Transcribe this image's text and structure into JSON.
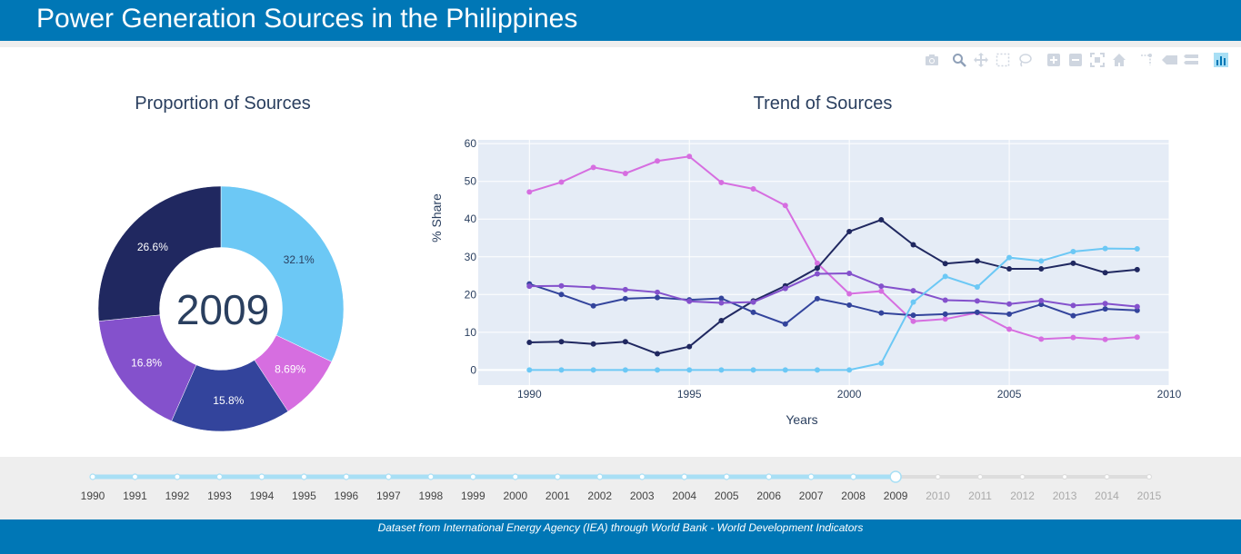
{
  "header": {
    "title": "Power Generation Sources in the Philippines"
  },
  "footer": {
    "note": "Dataset from International Energy Agency (IEA) through World Bank - World Development Indicators"
  },
  "modebar": {
    "icons": [
      "camera-icon",
      "zoom-icon",
      "pan-icon",
      "box-select-icon",
      "lasso-select-icon",
      "zoom-in-icon",
      "zoom-out-icon",
      "autoscale-icon",
      "reset-axes-icon",
      "spike-lines-icon",
      "hover-closest-icon",
      "hover-compare-icon",
      "plotly-logo-icon"
    ]
  },
  "slider": {
    "years": [
      "1990",
      "1991",
      "1992",
      "1993",
      "1994",
      "1995",
      "1996",
      "1997",
      "1998",
      "1999",
      "2000",
      "2001",
      "2002",
      "2003",
      "2004",
      "2005",
      "2006",
      "2007",
      "2008",
      "2009",
      "2010",
      "2011",
      "2012",
      "2013",
      "2014",
      "2015"
    ],
    "selected": "2009",
    "active_color": "#a8dff5",
    "inactive_color": "#dddddd"
  },
  "chart_data": [
    {
      "type": "pie",
      "title": "Proportion of Sources",
      "hole_text": "2009",
      "hole": 0.5,
      "slices": [
        {
          "label": "32.1%",
          "value": 32.1,
          "color": "#6cc8f5"
        },
        {
          "label": "8.69%",
          "value": 8.69,
          "color": "#d66ee0"
        },
        {
          "label": "15.8%",
          "value": 15.8,
          "color": "#33449c"
        },
        {
          "label": "16.8%",
          "value": 16.8,
          "color": "#8451cc"
        },
        {
          "label": "26.6%",
          "value": 26.6,
          "color": "#202860"
        }
      ]
    },
    {
      "type": "line",
      "title": "Trend of Sources",
      "xlabel": "Years",
      "ylabel": "% Share",
      "xlim": [
        1988.4,
        2010
      ],
      "ylim": [
        -4,
        61
      ],
      "xticks": [
        "1990",
        "1995",
        "2000",
        "2005",
        "2010"
      ],
      "yticks": [
        "0",
        "10",
        "20",
        "30",
        "40",
        "50",
        "60"
      ],
      "x": [
        1990,
        1991,
        1992,
        1993,
        1994,
        1995,
        1996,
        1997,
        1998,
        1999,
        2000,
        2001,
        2002,
        2003,
        2004,
        2005,
        2006,
        2007,
        2008,
        2009
      ],
      "series": [
        {
          "color": "#d66ee0",
          "values": [
            47.2,
            49.8,
            53.7,
            52.1,
            55.4,
            56.6,
            49.7,
            48.0,
            43.6,
            28.3,
            20.2,
            20.9,
            12.9,
            13.5,
            15.2,
            10.8,
            8.2,
            8.6,
            8.1,
            8.69
          ]
        },
        {
          "color": "#202860",
          "values": [
            7.3,
            7.5,
            6.9,
            7.5,
            4.3,
            6.2,
            13.1,
            18.3,
            22.3,
            27.0,
            36.7,
            39.8,
            33.2,
            28.2,
            28.9,
            26.8,
            26.8,
            28.3,
            25.8,
            26.6
          ]
        },
        {
          "color": "#33449c",
          "values": [
            22.8,
            20.0,
            17.0,
            18.9,
            19.2,
            18.6,
            19.0,
            15.3,
            12.2,
            18.9,
            17.2,
            15.1,
            14.5,
            14.8,
            15.3,
            14.8,
            17.4,
            14.4,
            16.2,
            15.8
          ]
        },
        {
          "color": "#8451cc",
          "values": [
            22.2,
            22.3,
            21.9,
            21.3,
            20.6,
            18.2,
            17.8,
            18.0,
            21.6,
            25.5,
            25.6,
            22.2,
            21.0,
            18.5,
            18.3,
            17.5,
            18.4,
            17.1,
            17.6,
            16.8
          ]
        },
        {
          "color": "#6cc8f5",
          "values": [
            0,
            0,
            0,
            0,
            0,
            0,
            0,
            0,
            0,
            0,
            0,
            1.8,
            18.0,
            24.8,
            22.0,
            29.8,
            28.9,
            31.4,
            32.2,
            32.1
          ]
        }
      ]
    }
  ]
}
